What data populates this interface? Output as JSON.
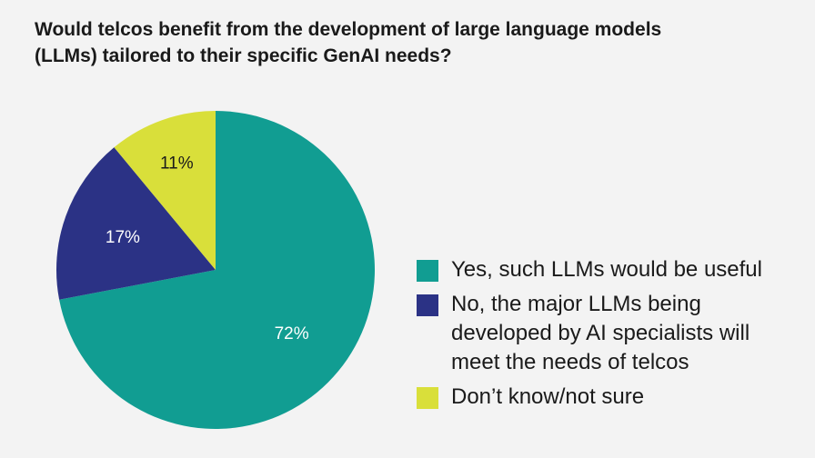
{
  "chart_data": {
    "type": "pie",
    "title": "Would telcos benefit from the development of large language models\n(LLMs) tailored to their specific GenAI needs?",
    "series": [
      {
        "name": "Yes, such LLMs would be useful",
        "value": 72,
        "label": "72%",
        "color": "#119d92"
      },
      {
        "name": "No, the major LLMs being developed by AI specialists will meet the needs of telcos",
        "value": 17,
        "label": "17%",
        "color": "#2b3285"
      },
      {
        "name": "Don’t know/not sure",
        "value": 11,
        "label": "11%",
        "color": "#d9df3a"
      }
    ],
    "legend_position": "right"
  }
}
